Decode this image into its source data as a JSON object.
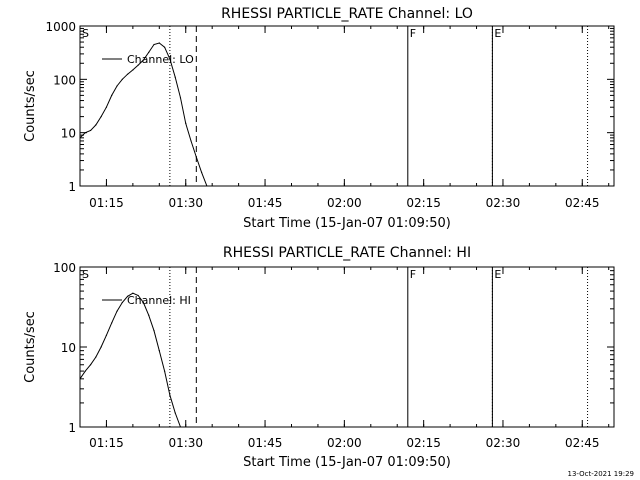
{
  "chart_data": [
    {
      "type": "line",
      "title": "RHESSI PARTICLE_RATE Channel: LO",
      "xlabel": "Start Time (15-Jan-07 01:09:50)",
      "ylabel": "Counts/sec",
      "yscale": "log",
      "xlim": [
        "01:10",
        "02:51"
      ],
      "ylim": [
        1,
        1000
      ],
      "x_ticks": [
        "01:15",
        "01:30",
        "01:45",
        "02:00",
        "02:15",
        "02:30",
        "02:45"
      ],
      "y_ticks": [
        "1",
        "10",
        "100",
        "1000"
      ],
      "legend": {
        "label": "Channel: LO",
        "placement": "top-left"
      },
      "grid": false,
      "series": [
        {
          "name": "Channel: LO",
          "x": [
            "01:10",
            "01:11",
            "01:12",
            "01:13",
            "01:14",
            "01:15",
            "01:16",
            "01:17",
            "01:18",
            "01:19",
            "01:20",
            "01:21",
            "01:22",
            "01:23",
            "01:24",
            "01:25",
            "01:26",
            "01:27",
            "01:28",
            "01:29",
            "01:30",
            "01:31",
            "01:32",
            "01:33",
            "01:34"
          ],
          "y": [
            8,
            10,
            11,
            14,
            20,
            30,
            50,
            75,
            100,
            125,
            150,
            185,
            230,
            320,
            450,
            480,
            400,
            240,
            110,
            45,
            15,
            7,
            3.5,
            1.8,
            1
          ]
        }
      ],
      "markers": [
        {
          "label": "S",
          "x": "01:10",
          "style": "label"
        },
        {
          "x": "01:27",
          "style": "dotted"
        },
        {
          "x": "01:32",
          "style": "dashed"
        },
        {
          "label": "F",
          "x": "02:12",
          "style": "solid"
        },
        {
          "label": "E",
          "x": "02:28",
          "style": "solid"
        },
        {
          "x": "02:28",
          "style": "dotted"
        },
        {
          "x": "02:46",
          "style": "dotted"
        }
      ]
    },
    {
      "type": "line",
      "title": "RHESSI PARTICLE_RATE Channel: HI",
      "xlabel": "Start Time (15-Jan-07 01:09:50)",
      "ylabel": "Counts/sec",
      "yscale": "log",
      "xlim": [
        "01:10",
        "02:51"
      ],
      "ylim": [
        1,
        100
      ],
      "x_ticks": [
        "01:15",
        "01:30",
        "01:45",
        "02:00",
        "02:15",
        "02:30",
        "02:45"
      ],
      "y_ticks": [
        "1",
        "10",
        "100"
      ],
      "legend": {
        "label": "Channel: HI",
        "placement": "top-left"
      },
      "grid": false,
      "series": [
        {
          "name": "Channel: HI",
          "x": [
            "01:10",
            "01:11",
            "01:12",
            "01:13",
            "01:14",
            "01:15",
            "01:16",
            "01:17",
            "01:18",
            "01:19",
            "01:20",
            "01:21",
            "01:22",
            "01:23",
            "01:24",
            "01:25",
            "01:26",
            "01:27",
            "01:28",
            "01:29"
          ],
          "y": [
            4,
            5,
            6,
            7.5,
            10,
            14,
            20,
            28,
            36,
            43,
            47,
            44,
            36,
            25,
            16,
            9,
            5,
            2.5,
            1.5,
            1
          ]
        }
      ],
      "markers": [
        {
          "label": "S",
          "x": "01:10",
          "style": "label"
        },
        {
          "x": "01:27",
          "style": "dotted"
        },
        {
          "x": "01:32",
          "style": "dashed"
        },
        {
          "label": "F",
          "x": "02:12",
          "style": "solid"
        },
        {
          "label": "E",
          "x": "02:28",
          "style": "solid"
        },
        {
          "x": "02:28",
          "style": "dotted"
        },
        {
          "x": "02:46",
          "style": "dotted"
        }
      ]
    }
  ],
  "footer": {
    "timestamp": "13-Oct-2021 19:29"
  }
}
